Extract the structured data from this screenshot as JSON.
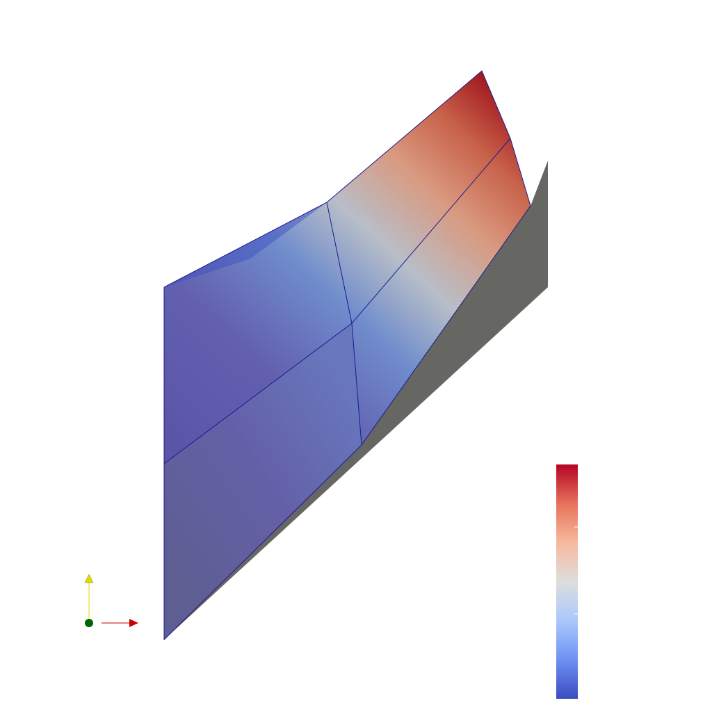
{
  "scene": {
    "background": "#ffffff",
    "shadow_color": "#666663",
    "mesh_edge_color": "#1a1a8c"
  },
  "colormap": {
    "name": "cool-to-warm",
    "stops": [
      "#3b4cc0",
      "#6f92f3",
      "#aac7fd",
      "#dddddd",
      "#f7b89c",
      "#e7745b",
      "#b40426"
    ],
    "tick_color": "#ffffff"
  },
  "orientation_axes": {
    "x_color": "#cc0000",
    "y_color": "#dddd00",
    "z_color": "#006600",
    "x_icon": "x-axis-arrow-icon",
    "y_icon": "y-axis-arrow-icon",
    "z_icon": "z-axis-dot-icon"
  }
}
